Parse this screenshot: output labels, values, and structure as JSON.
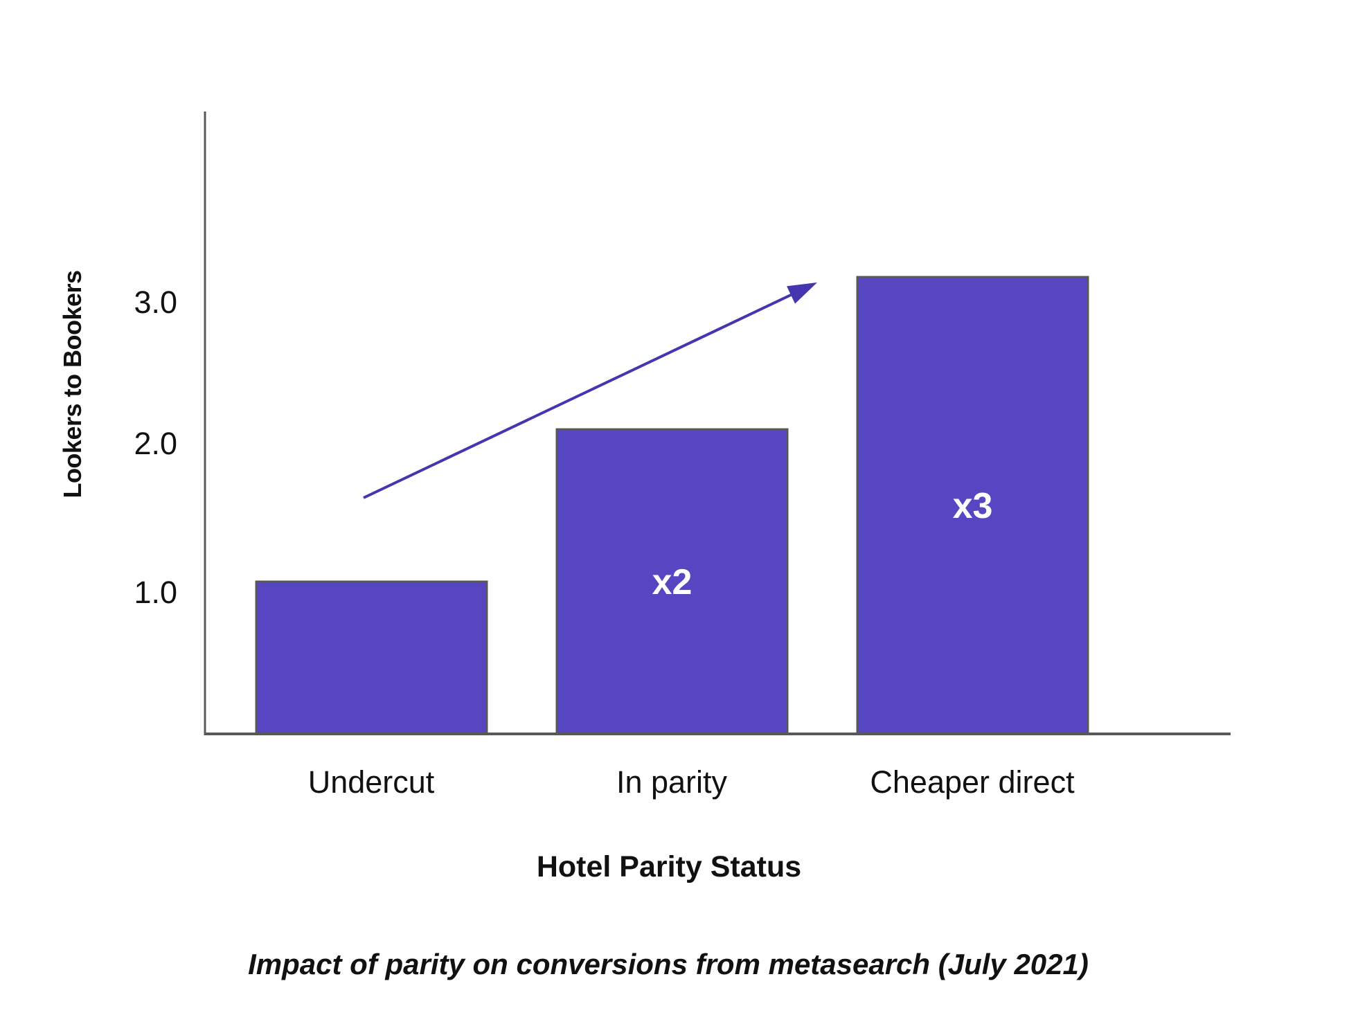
{
  "page": {
    "background": "#ffffff"
  },
  "chart_data": {
    "type": "bar",
    "title": "Impact of parity on conversions from metasearch (July 2021)",
    "xlabel": "Hotel Parity Status",
    "ylabel": "Lookers to Bookers",
    "categories": [
      "Undercut",
      "In parity",
      "Cheaper direct"
    ],
    "values": [
      1.05,
      2.1,
      3.15
    ],
    "bar_labels": [
      "",
      "x2",
      "x3"
    ],
    "ytick_labels": [
      "1.0",
      "2.0",
      "3.0"
    ],
    "ytick_values": [
      1.0,
      2.0,
      3.0
    ],
    "ylim": [
      0,
      4.3
    ],
    "grid": false,
    "legend": "none",
    "bar_color": "#5746c2",
    "bar_border_color": "#58585a",
    "axis_color": "#58585a",
    "bar_label_color": "#ffffff",
    "text_color": "#111111",
    "annotation": {
      "type": "trend-arrow",
      "direction": "up-right",
      "color": "#4336ae"
    }
  }
}
